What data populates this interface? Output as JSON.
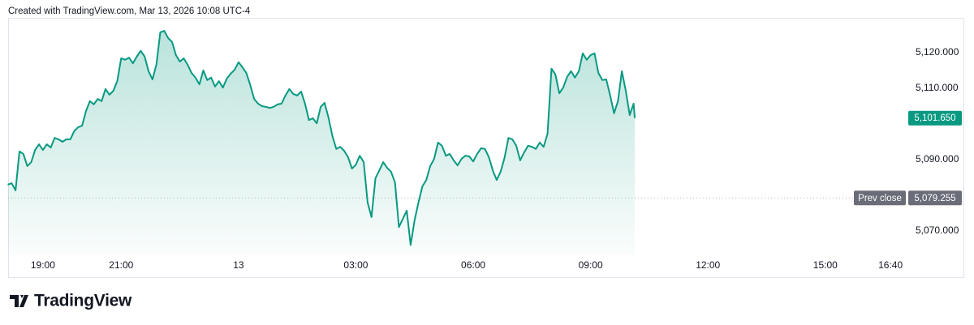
{
  "chart_data": {
    "type": "area",
    "title": "Created with TradingView.com, Mar 13, 2026 10:08 UTC-4",
    "brand": "TradingView",
    "color": "#089981",
    "x": [
      -5.9,
      -5.8,
      -5.7,
      -5.6,
      -5.5,
      -5.4,
      -5.3,
      -5.2,
      -5.1,
      -5.0,
      -4.9,
      -4.8,
      -4.7,
      -4.6,
      -4.5,
      -4.4,
      -4.3,
      -4.2,
      -4.1,
      -4.0,
      -3.9,
      -3.8,
      -3.7,
      -3.6,
      -3.5,
      -3.4,
      -3.3,
      -3.2,
      -3.1,
      -3.0,
      -2.9,
      -2.8,
      -2.7,
      -2.6,
      -2.5,
      -2.4,
      -2.3,
      -2.2,
      -2.1,
      -2.0,
      -1.9,
      -1.8,
      -1.7,
      -1.6,
      -1.5,
      -1.4,
      -1.3,
      -1.2,
      -1.1,
      -1.0,
      -0.9,
      -0.8,
      -0.7,
      -0.6,
      -0.5,
      -0.4,
      -0.3,
      -0.2,
      -0.1,
      0.0,
      0.1,
      0.2,
      0.3,
      0.4,
      0.5,
      0.6,
      0.7,
      0.8,
      0.9,
      1.0,
      1.1,
      1.2,
      1.3,
      1.4,
      1.5,
      1.6,
      1.7,
      1.8,
      1.9,
      2.0,
      2.1,
      2.2,
      2.3,
      2.4,
      2.5,
      2.6,
      2.7,
      2.8,
      2.9,
      3.0,
      3.1,
      3.2,
      3.3,
      3.4,
      3.5,
      3.6,
      3.7,
      3.8,
      3.9,
      4.0,
      4.1,
      4.2,
      4.3,
      4.4,
      4.5,
      4.6,
      4.7,
      4.8,
      4.9,
      5.0,
      5.1,
      5.2,
      5.3,
      5.4,
      5.5,
      5.6,
      5.7,
      5.8,
      5.9,
      6.0,
      6.1,
      6.2,
      6.3,
      6.4,
      6.5,
      6.6,
      6.7,
      6.8,
      6.9,
      7.0,
      7.1,
      7.2,
      7.3,
      7.4,
      7.5,
      7.6,
      7.7,
      7.8,
      7.9,
      8.0,
      8.1,
      8.2,
      8.3,
      8.4,
      8.5,
      8.6,
      8.7,
      8.8,
      8.9,
      9.0,
      9.1,
      9.2,
      9.3,
      9.4,
      9.5,
      9.6,
      9.7,
      9.8,
      9.9,
      10.0,
      10.1,
      10.13
    ],
    "values": [
      5083.0,
      5083.4,
      5081.4,
      5092.3,
      5091.6,
      5088.2,
      5089.3,
      5092.7,
      5094.3,
      5092.7,
      5094.3,
      5093.4,
      5096.1,
      5095.7,
      5095.0,
      5095.7,
      5095.7,
      5098.0,
      5099.1,
      5099.5,
      5103.6,
      5106.4,
      5105.5,
      5107.0,
      5106.4,
      5109.8,
      5108.2,
      5109.3,
      5112.0,
      5118.4,
      5118.0,
      5118.6,
      5117.0,
      5118.9,
      5120.5,
      5118.9,
      5114.8,
      5112.5,
      5116.6,
      5125.7,
      5126.1,
      5124.1,
      5123.0,
      5119.3,
      5117.5,
      5118.4,
      5116.6,
      5114.3,
      5113.0,
      5111.1,
      5115.0,
      5112.3,
      5113.0,
      5110.5,
      5112.0,
      5110.2,
      5112.7,
      5114.1,
      5115.2,
      5117.3,
      5115.9,
      5114.3,
      5110.9,
      5107.0,
      5105.7,
      5105.0,
      5104.8,
      5104.5,
      5104.8,
      5105.5,
      5105.7,
      5108.0,
      5109.8,
      5108.4,
      5108.0,
      5109.1,
      5105.7,
      5101.1,
      5101.6,
      5100.2,
      5104.8,
      5105.9,
      5101.8,
      5096.6,
      5093.0,
      5093.6,
      5092.5,
      5090.7,
      5087.5,
      5088.6,
      5091.1,
      5089.3,
      5078.0,
      5073.9,
      5084.8,
      5087.0,
      5089.3,
      5087.7,
      5086.6,
      5083.6,
      5071.1,
      5073.4,
      5075.7,
      5066.1,
      5073.0,
      5078.0,
      5082.5,
      5084.3,
      5088.2,
      5090.2,
      5094.8,
      5093.9,
      5091.1,
      5091.6,
      5089.8,
      5088.4,
      5090.2,
      5091.1,
      5090.9,
      5089.5,
      5091.6,
      5093.2,
      5093.0,
      5090.7,
      5087.0,
      5084.3,
      5086.6,
      5090.5,
      5096.1,
      5095.7,
      5093.9,
      5089.8,
      5092.0,
      5093.9,
      5093.6,
      5093.0,
      5094.8,
      5093.6,
      5097.3,
      5115.5,
      5113.9,
      5108.6,
      5110.2,
      5113.2,
      5114.8,
      5113.0,
      5114.8,
      5119.8,
      5118.0,
      5119.3,
      5119.8,
      5114.3,
      5112.3,
      5112.5,
      5108.0,
      5103.0,
      5106.4,
      5114.8,
      5109.3,
      5102.5,
      5105.7,
      5101.65
    ],
    "last_value": {
      "value": 5101.65,
      "label": "5,101.650"
    },
    "prev_close": {
      "name": "Prev close",
      "value": 5079.255,
      "label": "5,079.255"
    },
    "xlim": [
      -5.89,
      17.1
    ],
    "ylim": [
      5063.2,
      5130.2
    ],
    "xticks": [
      {
        "value": -5,
        "label": "19:00"
      },
      {
        "value": -3,
        "label": "21:00"
      },
      {
        "value": 0,
        "label": "13"
      },
      {
        "value": 3,
        "label": "03:00"
      },
      {
        "value": 6,
        "label": "06:00"
      },
      {
        "value": 9,
        "label": "09:00"
      },
      {
        "value": 12,
        "label": "12:00"
      },
      {
        "value": 15,
        "label": "15:00"
      },
      {
        "value": 16.667,
        "label": "16:40"
      }
    ],
    "yticks": [
      {
        "value": 5070,
        "label": "5,070.000"
      },
      {
        "value": 5090,
        "label": "5,090.000"
      },
      {
        "value": 5110,
        "label": "5,110.000"
      },
      {
        "value": 5120,
        "label": "5,120.000"
      }
    ],
    "grid": false
  }
}
